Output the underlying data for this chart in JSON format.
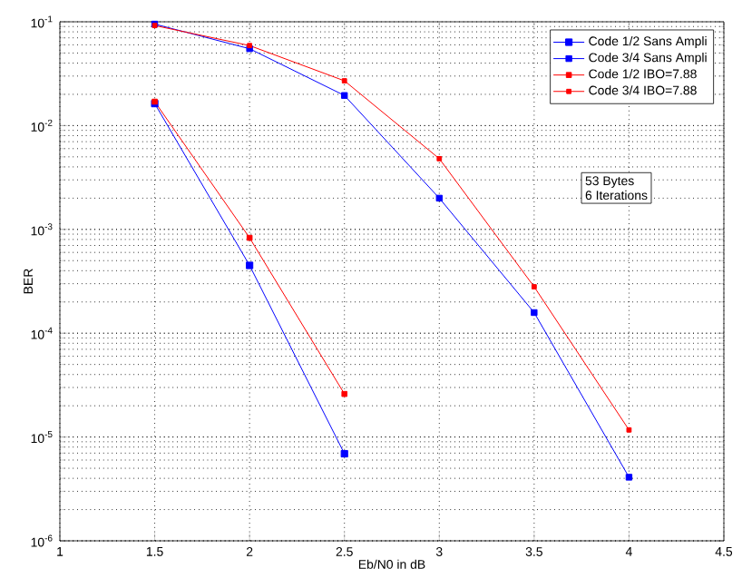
{
  "chart_data": {
    "type": "line",
    "xlabel": "Eb/N0 in dB",
    "ylabel": "BER",
    "log": "y",
    "grid": true,
    "legend": "top right",
    "marker": "square",
    "line_style": "solid",
    "xlim": [
      1,
      4.5
    ],
    "xticks": [
      1,
      1.5,
      2,
      2.5,
      3,
      3.5,
      4,
      4.5
    ],
    "ylim": [
      1e-06,
      0.1
    ],
    "yticks": [
      {
        "value": 1e-06,
        "label": "10$^{-6}$"
      },
      {
        "value": 1e-05,
        "label": "10$^{-5}$"
      },
      {
        "value": 0.0001,
        "label": "10$^{-4}$"
      },
      {
        "value": 0.001,
        "label": "10$^{-3}$"
      },
      {
        "value": 0.01,
        "label": "10$^{-2}$"
      },
      {
        "value": 0.1,
        "label": "10$^{-1}$"
      }
    ],
    "series": [
      {
        "name": "Code 1/2 Sans Ampli",
        "color": "#0000ff",
        "x": [
          1.5,
          2,
          2.5
        ],
        "values": [
          0.0163,
          0.00045,
          6.9e-06
        ]
      },
      {
        "name": "Code 3/4 Sans Ampli",
        "color": "#0000ff",
        "x": [
          1.5,
          2,
          2.5,
          3,
          3.5,
          4
        ],
        "values": [
          0.095,
          0.055,
          0.0195,
          0.002,
          0.000158,
          4.1e-06
        ]
      },
      {
        "name": "Code 1/2 IBO=7.88",
        "color": "#ff0000",
        "x": [
          1.5,
          2,
          2.5
        ],
        "values": [
          0.017,
          0.00083,
          2.6e-05
        ]
      },
      {
        "name": "Code 3/4 IBO=7.88",
        "color": "#ff0000",
        "x": [
          1.5,
          2,
          2.5,
          3,
          3.5,
          4
        ],
        "values": [
          0.092,
          0.059,
          0.027,
          0.0048,
          0.00028,
          1.17e-05
        ]
      }
    ],
    "annotations": [
      "53 Bytes",
      "6 Iterations"
    ]
  }
}
